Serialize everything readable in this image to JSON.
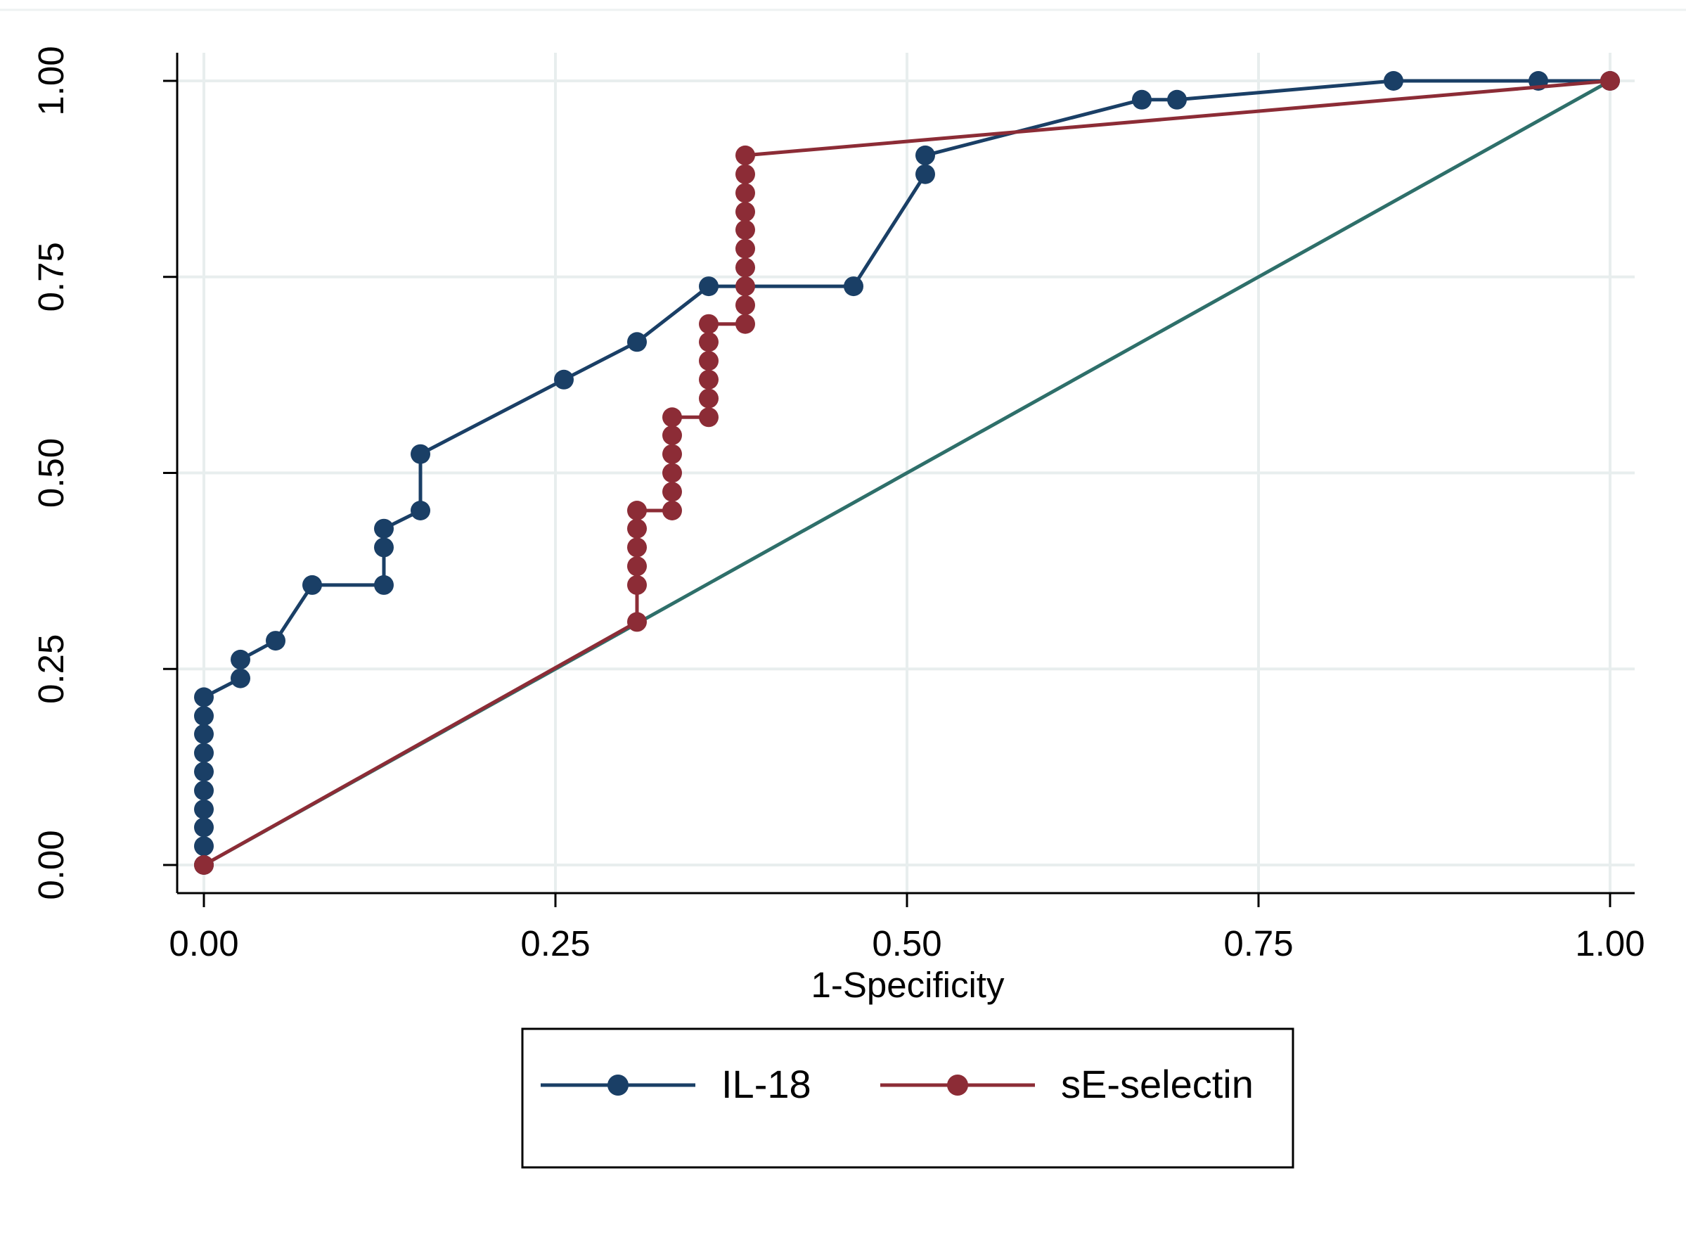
{
  "chart_data": {
    "type": "line",
    "title": "",
    "xlabel": "1-Specificity",
    "ylabel": "",
    "xlim": [
      0,
      1
    ],
    "ylim": [
      0,
      1
    ],
    "x_ticks": [
      "0.00",
      "0.25",
      "0.50",
      "0.75",
      "1.00"
    ],
    "y_ticks": [
      "0.00",
      "0.25",
      "0.50",
      "0.75",
      "1.00"
    ],
    "grid": true,
    "legend_position": "bottom",
    "series": [
      {
        "name": "IL-18",
        "color": "#1a3f66",
        "markers": true,
        "points": [
          [
            0,
            0
          ],
          [
            0,
            0.024
          ],
          [
            0,
            0.048
          ],
          [
            0,
            0.071
          ],
          [
            0,
            0.095
          ],
          [
            0,
            0.119
          ],
          [
            0,
            0.143
          ],
          [
            0,
            0.167
          ],
          [
            0,
            0.19
          ],
          [
            0,
            0.214
          ],
          [
            0.026,
            0.238
          ],
          [
            0.026,
            0.262
          ],
          [
            0.051,
            0.286
          ],
          [
            0.077,
            0.357
          ],
          [
            0.128,
            0.357
          ],
          [
            0.128,
            0.405
          ],
          [
            0.128,
            0.429
          ],
          [
            0.154,
            0.452
          ],
          [
            0.154,
            0.524
          ],
          [
            0.256,
            0.619
          ],
          [
            0.308,
            0.667
          ],
          [
            0.359,
            0.738
          ],
          [
            0.462,
            0.738
          ],
          [
            0.513,
            0.881
          ],
          [
            0.513,
            0.905
          ],
          [
            0.667,
            0.976
          ],
          [
            0.692,
            0.976
          ],
          [
            0.846,
            1.0
          ],
          [
            0.949,
            1.0
          ],
          [
            1.0,
            1.0
          ]
        ]
      },
      {
        "name": "sE-selectin",
        "color": "#8c2c36",
        "markers": true,
        "points": [
          [
            0,
            0
          ],
          [
            0.308,
            0.31
          ],
          [
            0.308,
            0.357
          ],
          [
            0.308,
            0.381
          ],
          [
            0.308,
            0.405
          ],
          [
            0.308,
            0.429
          ],
          [
            0.308,
            0.452
          ],
          [
            0.333,
            0.452
          ],
          [
            0.333,
            0.476
          ],
          [
            0.333,
            0.5
          ],
          [
            0.333,
            0.524
          ],
          [
            0.333,
            0.548
          ],
          [
            0.333,
            0.571
          ],
          [
            0.359,
            0.571
          ],
          [
            0.359,
            0.595
          ],
          [
            0.359,
            0.619
          ],
          [
            0.359,
            0.643
          ],
          [
            0.359,
            0.667
          ],
          [
            0.359,
            0.69
          ],
          [
            0.385,
            0.69
          ],
          [
            0.385,
            0.714
          ],
          [
            0.385,
            0.738
          ],
          [
            0.385,
            0.762
          ],
          [
            0.385,
            0.786
          ],
          [
            0.385,
            0.81
          ],
          [
            0.385,
            0.833
          ],
          [
            0.385,
            0.857
          ],
          [
            0.385,
            0.881
          ],
          [
            0.385,
            0.905
          ],
          [
            1.0,
            1.0
          ]
        ]
      }
    ],
    "reference_line": {
      "color": "#2e6f6a",
      "points": [
        [
          0,
          0
        ],
        [
          1,
          1
        ]
      ]
    }
  }
}
